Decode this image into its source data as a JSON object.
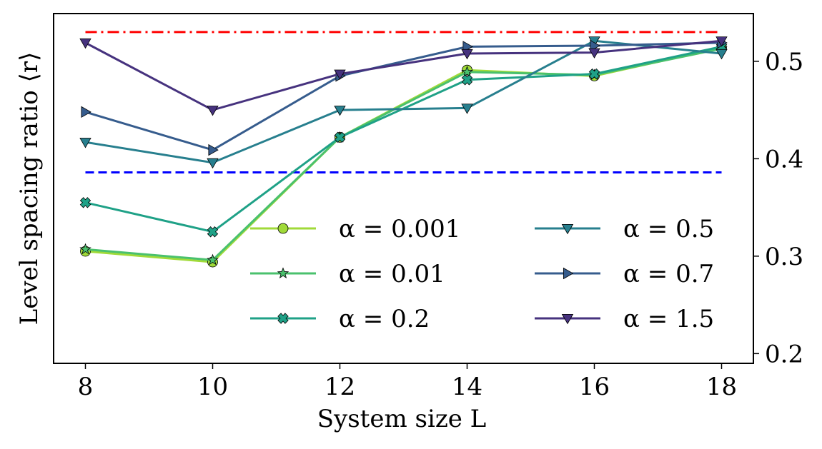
{
  "chart_data": {
    "type": "line",
    "xlabel": "System size L",
    "ylabel": "Level spacing ratio ⟨r⟩",
    "x_ticks": [
      8,
      10,
      12,
      14,
      16,
      18
    ],
    "x_tick_labels": [
      "8",
      "10",
      "12",
      "14",
      "16",
      "18"
    ],
    "y_ticks": [
      0.2,
      0.3,
      0.4,
      0.5
    ],
    "y_tick_labels": [
      "0.2",
      "0.3",
      "0.4",
      "0.5"
    ],
    "xlim": [
      7.5,
      18.5
    ],
    "ylim": [
      0.19,
      0.549
    ],
    "y_axis_side": "right",
    "grid": false,
    "legend_placement": "lower-right",
    "legend_columns": 2,
    "reference_lines": [
      {
        "y": 0.53,
        "x_from": 8,
        "x_to": 18,
        "style": "dashdot",
        "color": "#ff0000"
      },
      {
        "y": 0.386,
        "x_from": 8,
        "x_to": 18,
        "style": "dashed",
        "color": "#0000ff"
      }
    ],
    "series": [
      {
        "name": "α = 0.001",
        "marker": "circle",
        "color": "#a0da39",
        "x": [
          8,
          10,
          12,
          14,
          16,
          18
        ],
        "y": [
          0.305,
          0.294,
          0.422,
          0.491,
          0.485,
          0.514
        ]
      },
      {
        "name": "α = 0.01",
        "marker": "star",
        "color": "#4ac16d",
        "x": [
          8,
          10,
          12,
          14,
          16,
          18
        ],
        "y": [
          0.307,
          0.296,
          0.422,
          0.489,
          0.486,
          0.513
        ]
      },
      {
        "name": "α = 0.2",
        "marker": "x-filled",
        "color": "#1fa187",
        "x": [
          8,
          10,
          12,
          14,
          16,
          18
        ],
        "y": [
          0.355,
          0.325,
          0.422,
          0.481,
          0.487,
          0.515
        ]
      },
      {
        "name": "α = 0.5",
        "marker": "triangle-down",
        "color": "#277f8e",
        "x": [
          8,
          10,
          12,
          14,
          16,
          18
        ],
        "y": [
          0.417,
          0.396,
          0.45,
          0.452,
          0.521,
          0.508
        ]
      },
      {
        "name": "α = 0.7",
        "marker": "triangle-right",
        "color": "#365c8d",
        "x": [
          8,
          10,
          12,
          14,
          16,
          18
        ],
        "y": [
          0.448,
          0.409,
          0.485,
          0.515,
          0.516,
          0.519
        ]
      },
      {
        "name": "α = 1.5",
        "marker": "triangle-down",
        "color": "#46327e",
        "x": [
          8,
          10,
          12,
          14,
          16,
          18
        ],
        "y": [
          0.519,
          0.45,
          0.487,
          0.508,
          0.509,
          0.521
        ]
      }
    ]
  }
}
